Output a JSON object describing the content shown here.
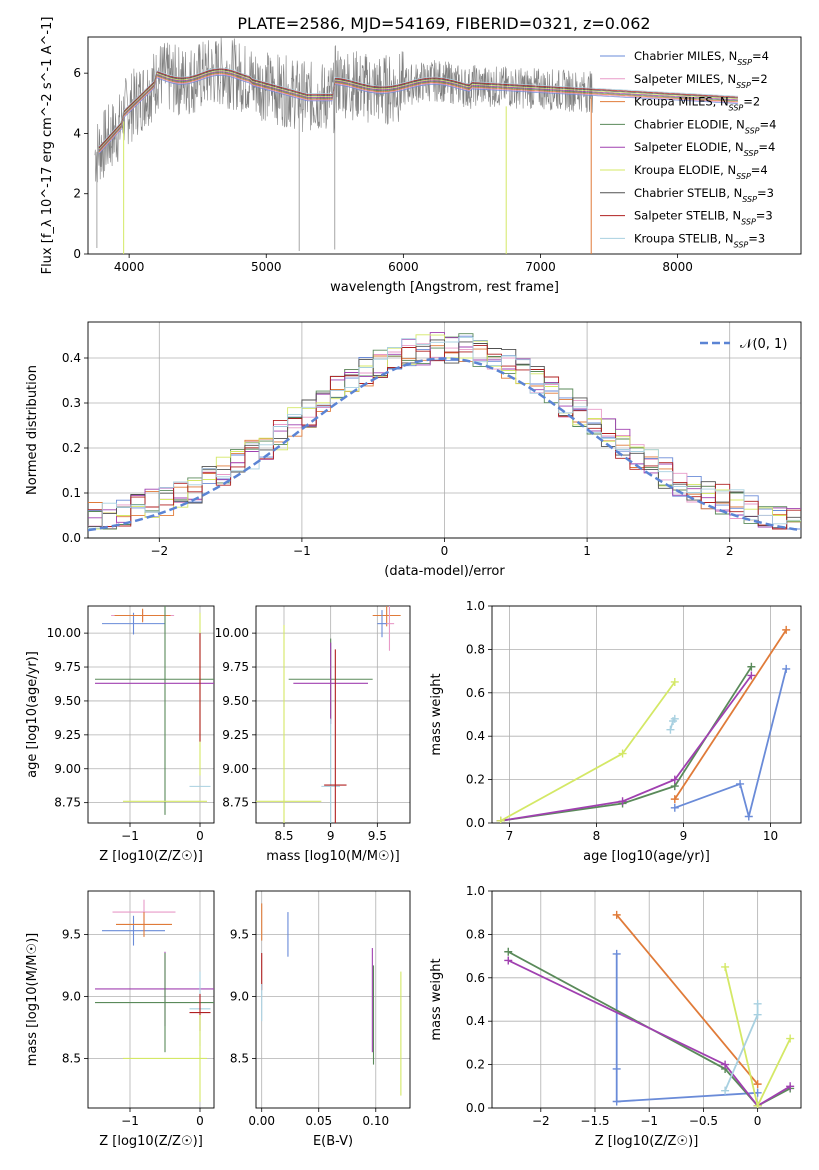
{
  "title": "PLATE=2586, MJD=54169, FIBERID=0321, z=0.062",
  "legend": [
    "Chabrier MILES, N_SSP=4",
    "Salpeter MILES, N_SSP=2",
    "Kroupa MILES, N_SSP=2",
    "Chabrier ELODIE, N_SSP=4",
    "Salpeter ELODIE, N_SSP=4",
    "Kroupa ELODIE, N_SSP=4",
    "Chabrier STELIB, N_SSP=3",
    "Salpeter STELIB, N_SSP=3",
    "Kroupa STELIB, N_SSP=3"
  ],
  "legend_colors": [
    "#6a8bd8",
    "#e89ac8",
    "#e07b39",
    "#5a8a5a",
    "#a040b0",
    "#d4e866",
    "#505050",
    "#b02020",
    "#a8d0e0"
  ],
  "chart_data": [
    {
      "id": "spectrum",
      "type": "line",
      "xlabel": "wavelength [Angstrom, rest frame]",
      "ylabel": "Flux [f_λ 10^-17 erg cm^-2 s^-1 A^-1]",
      "xlim": [
        3700,
        8900
      ],
      "ylim": [
        0,
        7.2
      ],
      "xticks": [
        4000,
        5000,
        6000,
        7000,
        8000
      ],
      "yticks": [
        0,
        2,
        4,
        6
      ],
      "series": [
        {
          "name": "data",
          "color": "#808080"
        }
      ]
    },
    {
      "id": "residuals",
      "type": "line",
      "xlabel": "(data-model)/error",
      "ylabel": "Normed distribution",
      "xlim": [
        -2.5,
        2.5
      ],
      "ylim": [
        0,
        0.48
      ],
      "xticks": [
        -2,
        -1,
        0,
        1,
        2
      ],
      "yticks": [
        0.0,
        0.1,
        0.2,
        0.3,
        0.4
      ],
      "legend": "𝒩(0, 1)",
      "normal_color": "#5b84d4"
    },
    {
      "id": "age_vs_Z",
      "type": "scatter",
      "xlabel": "Z [log10(Z/Z☉)]",
      "ylabel": "age [log10(age/yr)]",
      "xlim": [
        -1.6,
        0.2
      ],
      "ylim": [
        8.6,
        10.2
      ],
      "xticks": [
        -1,
        0
      ],
      "yticks": [
        8.75,
        9.0,
        9.25,
        9.5,
        9.75,
        10.0
      ],
      "points": [
        {
          "x": -0.95,
          "y": 10.07,
          "xerr": 0.45,
          "yerr": 0.08,
          "c": 0
        },
        {
          "x": -0.82,
          "y": 10.13,
          "xerr": 0.45,
          "yerr": 0.04,
          "c": 1
        },
        {
          "x": -0.82,
          "y": 10.13,
          "xerr": 0.4,
          "yerr": 0.05,
          "c": 2
        },
        {
          "x": -0.5,
          "y": 9.66,
          "xerr": 1.0,
          "yerr": 1.0,
          "c": 3
        },
        {
          "x": -0.5,
          "y": 9.63,
          "xerr": 1.0,
          "yerr": 0.0,
          "c": 4
        },
        {
          "x": 0.0,
          "y": 9.55,
          "xerr": 0.0,
          "yerr": 0.6,
          "c": 5
        },
        {
          "x": 0.0,
          "y": 8.87,
          "xerr": 0.15,
          "yerr": 0.0,
          "c": 8
        },
        {
          "x": 0.0,
          "y": 9.6,
          "xerr": 0.0,
          "yerr": 0.4,
          "c": 7
        },
        {
          "x": -0.5,
          "y": 8.76,
          "xerr": 0.6,
          "yerr": 0.0,
          "c": 5
        }
      ]
    },
    {
      "id": "age_vs_mass",
      "type": "scatter",
      "xlabel": "mass [log10(M/M☉)]",
      "ylabel": "",
      "xlim": [
        8.2,
        9.85
      ],
      "ylim": [
        8.6,
        10.2
      ],
      "xticks": [
        8.5,
        9.0,
        9.5
      ],
      "yticks": [
        8.75,
        9.0,
        9.25,
        9.5,
        9.75,
        10.0
      ],
      "points": [
        {
          "x": 9.6,
          "y": 10.13,
          "xerr": 0.15,
          "yerr": 0.08,
          "c": 2
        },
        {
          "x": 9.63,
          "y": 10.07,
          "xerr": 0.05,
          "yerr": 0.2,
          "c": 1
        },
        {
          "x": 9.55,
          "y": 10.07,
          "xerr": 0.05,
          "yerr": 0.1,
          "c": 0
        },
        {
          "x": 9.0,
          "y": 9.66,
          "xerr": 0.45,
          "yerr": 0.3,
          "c": 3
        },
        {
          "x": 9.0,
          "y": 9.63,
          "xerr": 0.4,
          "yerr": 0.3,
          "c": 4
        },
        {
          "x": 8.5,
          "y": 8.76,
          "xerr": 0.4,
          "yerr": 1.3,
          "c": 5
        },
        {
          "x": 9.0,
          "y": 8.87,
          "xerr": 0.1,
          "yerr": 0.5,
          "c": 8
        },
        {
          "x": 9.05,
          "y": 8.88,
          "xerr": 0.12,
          "yerr": 1.0,
          "c": 7
        }
      ]
    },
    {
      "id": "massweight_vs_age",
      "type": "line",
      "xlabel": "age [log10(age/yr)]",
      "ylabel": "mass weight",
      "xlim": [
        6.8,
        10.35
      ],
      "ylim": [
        0,
        1.0
      ],
      "xticks": [
        7,
        8,
        9,
        10
      ],
      "yticks": [
        0.0,
        0.2,
        0.4,
        0.6,
        0.8,
        1.0
      ],
      "series": [
        {
          "c": 0,
          "x": [
            8.9,
            9.65,
            9.75,
            10.18
          ],
          "y": [
            0.07,
            0.18,
            0.03,
            0.71
          ]
        },
        {
          "c": 2,
          "x": [
            8.9,
            10.18
          ],
          "y": [
            0.11,
            0.89
          ]
        },
        {
          "c": 3,
          "x": [
            6.9,
            8.3,
            8.9,
            9.78
          ],
          "y": [
            0.01,
            0.09,
            0.17,
            0.72
          ]
        },
        {
          "c": 4,
          "x": [
            6.9,
            8.3,
            8.9,
            9.78
          ],
          "y": [
            0.01,
            0.1,
            0.2,
            0.68
          ]
        },
        {
          "c": 5,
          "x": [
            6.9,
            8.3,
            8.9
          ],
          "y": [
            0.01,
            0.32,
            0.65
          ]
        },
        {
          "c": 8,
          "x": [
            8.85,
            8.88,
            8.9
          ],
          "y": [
            0.43,
            0.47,
            0.48
          ]
        }
      ]
    },
    {
      "id": "mass_vs_Z",
      "type": "scatter",
      "xlabel": "Z [log10(Z/Z☉)]",
      "ylabel": "mass [log10(M/M☉)]",
      "xlim": [
        -1.6,
        0.2
      ],
      "ylim": [
        8.1,
        9.85
      ],
      "xticks": [
        -1,
        0
      ],
      "yticks": [
        8.5,
        9.0,
        9.5
      ],
      "points": [
        {
          "x": -0.8,
          "y": 9.68,
          "xerr": 0.45,
          "yerr": 0.1,
          "c": 1
        },
        {
          "x": -0.95,
          "y": 9.53,
          "xerr": 0.45,
          "yerr": 0.12,
          "c": 0
        },
        {
          "x": -0.8,
          "y": 9.58,
          "xerr": 0.4,
          "yerr": 0.1,
          "c": 2
        },
        {
          "x": -0.5,
          "y": 9.06,
          "xerr": 1.0,
          "yerr": 0.3,
          "c": 4
        },
        {
          "x": -0.5,
          "y": 8.95,
          "xerr": 1.0,
          "yerr": 0.4,
          "c": 3
        },
        {
          "x": -0.5,
          "y": 8.5,
          "xerr": 0.6,
          "yerr": 0.0,
          "c": 5
        },
        {
          "x": 0.0,
          "y": 8.9,
          "xerr": 0.15,
          "yerr": 0.3,
          "c": 8
        },
        {
          "x": 0.0,
          "y": 8.87,
          "xerr": 0.15,
          "yerr": 0.15,
          "c": 7
        },
        {
          "x": 0.0,
          "y": 8.5,
          "xerr": 0.0,
          "yerr": 0.35,
          "c": 5
        }
      ]
    },
    {
      "id": "mass_vs_ebv",
      "type": "scatter",
      "xlabel": "E(B-V)",
      "ylabel": "",
      "xlim": [
        -0.005,
        0.13
      ],
      "ylim": [
        8.1,
        9.85
      ],
      "xticks": [
        0.0,
        0.05,
        0.1
      ],
      "yticks": [
        8.5,
        9.0,
        9.5
      ],
      "points": [
        {
          "x": 0.0,
          "y": 9.6,
          "xerr": 0,
          "yerr": 0.15,
          "c": 2
        },
        {
          "x": 0.0,
          "y": 9.2,
          "xerr": 0,
          "yerr": 0.15,
          "c": 7
        },
        {
          "x": 0.0,
          "y": 8.95,
          "xerr": 0,
          "yerr": 0.15,
          "c": 8
        },
        {
          "x": 0.023,
          "y": 9.5,
          "xerr": 0,
          "yerr": 0.18,
          "c": 0
        },
        {
          "x": 0.097,
          "y": 8.97,
          "xerr": 0,
          "yerr": 0.42,
          "c": 4
        },
        {
          "x": 0.098,
          "y": 8.85,
          "xerr": 0,
          "yerr": 0.4,
          "c": 3
        },
        {
          "x": 0.122,
          "y": 8.7,
          "xerr": 0,
          "yerr": 0.5,
          "c": 5
        }
      ]
    },
    {
      "id": "massweight_vs_Z",
      "type": "line",
      "xlabel": "Z [log10(Z/Z☉)]",
      "ylabel": "mass weight",
      "xlim": [
        -2.45,
        0.4
      ],
      "ylim": [
        0,
        1.0
      ],
      "xticks": [
        -2.0,
        -1.5,
        -1.0,
        -0.5,
        0.0
      ],
      "yticks": [
        0.0,
        0.2,
        0.4,
        0.6,
        0.8,
        1.0
      ],
      "series": [
        {
          "c": 0,
          "x": [
            -1.3,
            -1.3,
            -1.3,
            0.0
          ],
          "y": [
            0.71,
            0.18,
            0.03,
            0.07
          ]
        },
        {
          "c": 2,
          "x": [
            -1.3,
            0.0
          ],
          "y": [
            0.89,
            0.11
          ]
        },
        {
          "c": 3,
          "x": [
            -2.3,
            -0.3,
            0.0,
            0.3
          ],
          "y": [
            0.72,
            0.18,
            0.01,
            0.09
          ]
        },
        {
          "c": 4,
          "x": [
            -2.3,
            -0.3,
            0.0,
            0.3
          ],
          "y": [
            0.68,
            0.2,
            0.01,
            0.1
          ]
        },
        {
          "c": 5,
          "x": [
            -0.3,
            0.0,
            0.3
          ],
          "y": [
            0.65,
            0.01,
            0.32
          ]
        },
        {
          "c": 8,
          "x": [
            -0.3,
            0.0,
            0.0
          ],
          "y": [
            0.08,
            0.43,
            0.48
          ]
        }
      ]
    }
  ]
}
